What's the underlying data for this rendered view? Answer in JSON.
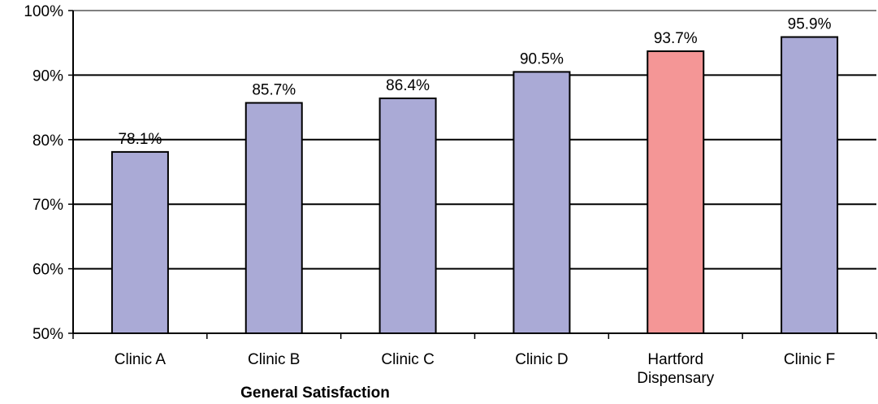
{
  "chart_data": {
    "type": "bar",
    "title": "",
    "xlabel": "General Satisfaction",
    "ylabel": "",
    "categories": [
      "Clinic A",
      "Clinic B",
      "Clinic C",
      "Clinic D",
      "Hartford Dispensary",
      "Clinic F"
    ],
    "values": [
      78.1,
      85.7,
      86.4,
      90.5,
      93.7,
      95.9
    ],
    "data_labels": [
      "78.1%",
      "85.7%",
      "86.4%",
      "90.5%",
      "93.7%",
      "95.9%"
    ],
    "ylim": [
      50,
      100
    ],
    "yticks": [
      50,
      60,
      70,
      80,
      90,
      100
    ],
    "ytick_labels": [
      "50%",
      "60%",
      "70%",
      "80%",
      "90%",
      "100%"
    ],
    "grid": true,
    "legend": "none",
    "colors": {
      "default_bar": "#aaaad6",
      "highlight_bar": "#f49696",
      "bar_edge": "#000000",
      "grid": "#000000"
    },
    "highlight_category": "Hartford Dispensary"
  }
}
